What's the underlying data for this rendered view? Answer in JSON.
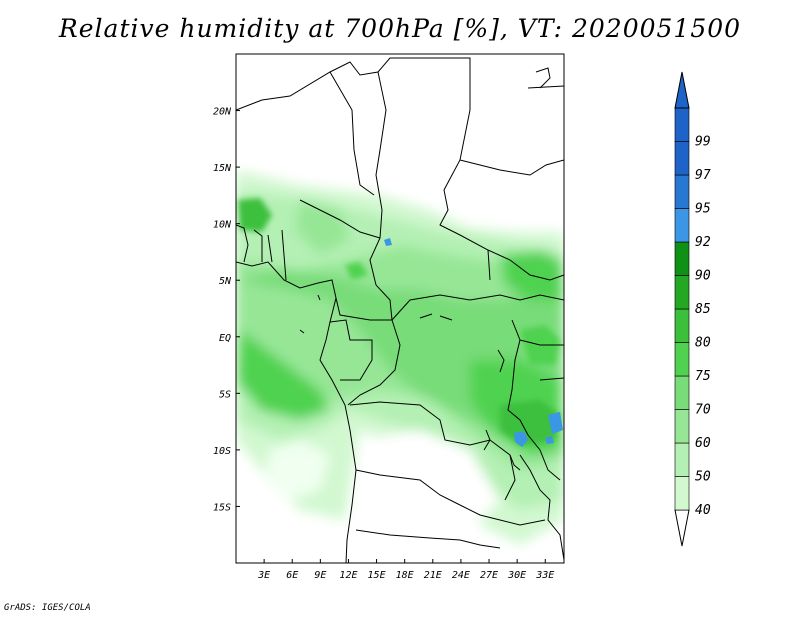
{
  "title": "Relative humidity at 700hPa [%], VT: 2020051500",
  "credit": "GrADS: IGES/COLA",
  "map": {
    "variable": "Relative humidity at 700hPa",
    "units": "%",
    "valid_time": "2020051500",
    "lon_range": [
      0,
      35
    ],
    "lat_range": [
      -20,
      25
    ],
    "lat_ticks": [
      {
        "value": 20,
        "label": "20N"
      },
      {
        "value": 15,
        "label": "15N"
      },
      {
        "value": 10,
        "label": "10N"
      },
      {
        "value": 5,
        "label": "5N"
      },
      {
        "value": 0,
        "label": "EQ"
      },
      {
        "value": -5,
        "label": "5S"
      },
      {
        "value": -10,
        "label": "10S"
      },
      {
        "value": -15,
        "label": "15S"
      }
    ],
    "lon_ticks": [
      {
        "value": 3,
        "label": "3E"
      },
      {
        "value": 6,
        "label": "6E"
      },
      {
        "value": 9,
        "label": "9E"
      },
      {
        "value": 12,
        "label": "12E"
      },
      {
        "value": 15,
        "label": "15E"
      },
      {
        "value": 18,
        "label": "18E"
      },
      {
        "value": 21,
        "label": "21E"
      },
      {
        "value": 24,
        "label": "24E"
      },
      {
        "value": 27,
        "label": "27E"
      },
      {
        "value": 30,
        "label": "30E"
      },
      {
        "value": 33,
        "label": "33E"
      }
    ]
  },
  "colorbar": {
    "levels": [
      {
        "label": "40",
        "color": "#f0fff0"
      },
      {
        "label": "50",
        "color": "#d2f8d0"
      },
      {
        "label": "60",
        "color": "#b4f0b4"
      },
      {
        "label": "70",
        "color": "#96e696"
      },
      {
        "label": "75",
        "color": "#78dc78"
      },
      {
        "label": "80",
        "color": "#50d250"
      },
      {
        "label": "85",
        "color": "#3cc03c"
      },
      {
        "label": "90",
        "color": "#24a824"
      },
      {
        "label": "92",
        "color": "#0f9115"
      },
      {
        "label": "95",
        "color": "#3c96e6"
      },
      {
        "label": "97",
        "color": "#2878d2"
      },
      {
        "label": "99",
        "color": "#1e64c8"
      }
    ],
    "bottom_color": "#ffffff",
    "top_color": "#1e64c8"
  }
}
